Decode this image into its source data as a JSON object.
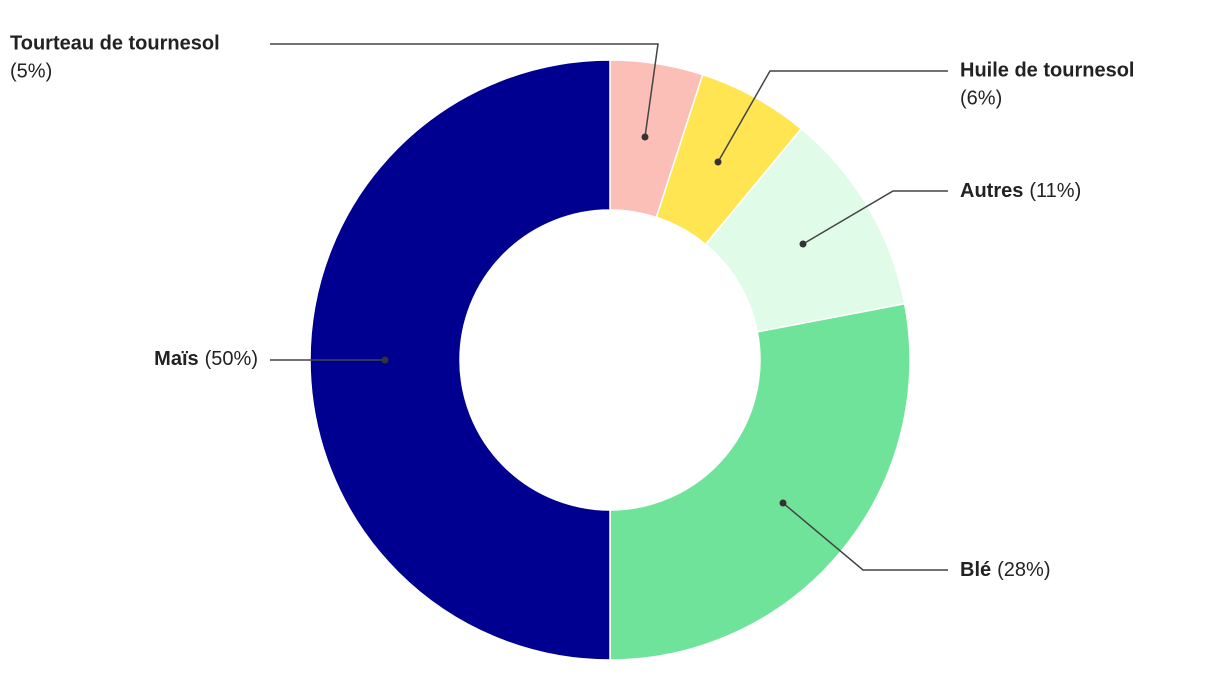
{
  "chart_data": {
    "type": "donut",
    "categories": [
      "Tourteau de tournesol",
      "Huile de tournesol",
      "Autres",
      "Blé",
      "Maïs"
    ],
    "values": [
      5,
      6,
      11,
      28,
      50
    ],
    "value_labels": [
      "(5%)",
      "(6%)",
      "(11%)",
      "(28%)",
      "(50%)"
    ],
    "colors": [
      "#fbbfb8",
      "#ffe552",
      "#e0fbe8",
      "#70e39b",
      "#000090"
    ]
  }
}
